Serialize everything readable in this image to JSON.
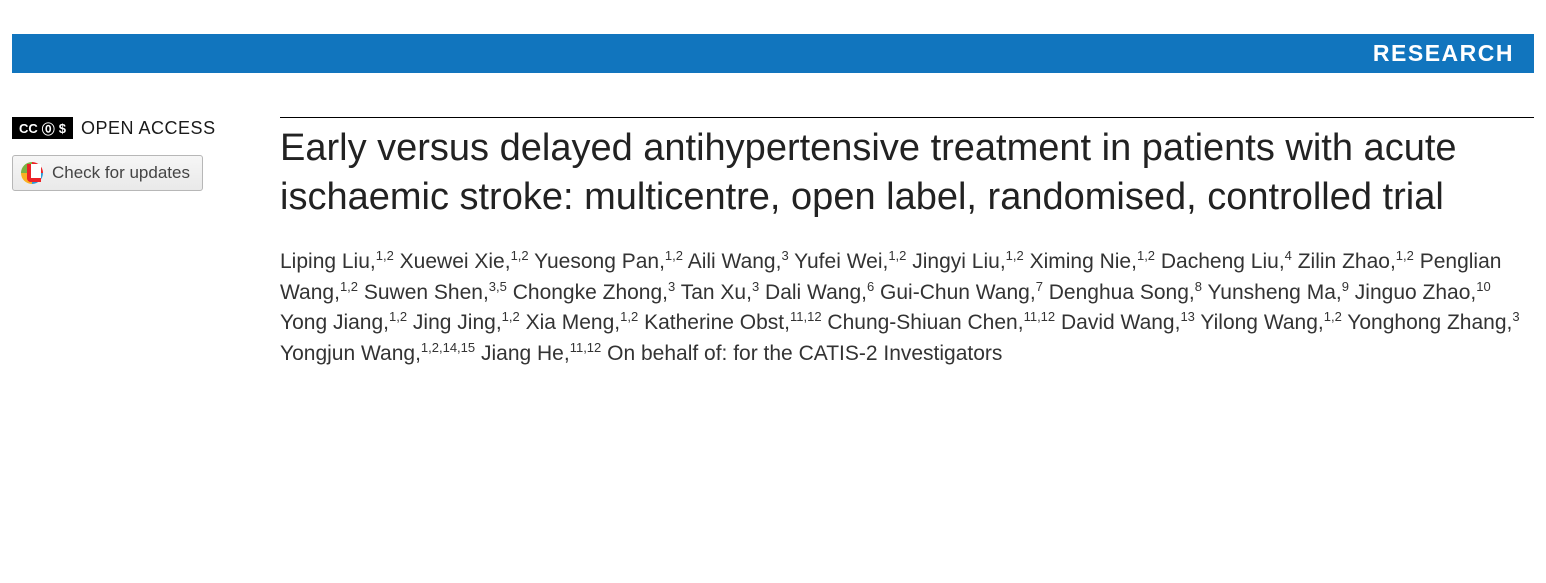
{
  "header": {
    "section_label": "RESEARCH",
    "bar_color": "#1175be"
  },
  "sidebar": {
    "open_access_label": "OPEN ACCESS",
    "cc_symbols": "ⓒ ⓪ ⑤",
    "updates_button_label": "Check for updates"
  },
  "article": {
    "title": "Early versus delayed antihypertensive treatment in patients with acute ischaemic stroke: multicentre, open label, randomised, controlled trial",
    "authors": [
      {
        "name": "Liping Liu",
        "aff": "1,2"
      },
      {
        "name": "Xuewei Xie",
        "aff": "1,2"
      },
      {
        "name": "Yuesong Pan",
        "aff": "1,2"
      },
      {
        "name": "Aili Wang",
        "aff": "3"
      },
      {
        "name": "Yufei Wei",
        "aff": "1,2"
      },
      {
        "name": "Jingyi Liu",
        "aff": "1,2"
      },
      {
        "name": "Ximing Nie",
        "aff": "1,2"
      },
      {
        "name": "Dacheng Liu",
        "aff": "4"
      },
      {
        "name": "Zilin Zhao",
        "aff": "1,2"
      },
      {
        "name": "Penglian Wang",
        "aff": "1,2"
      },
      {
        "name": "Suwen Shen",
        "aff": "3,5"
      },
      {
        "name": "Chongke Zhong",
        "aff": "3"
      },
      {
        "name": "Tan Xu",
        "aff": "3"
      },
      {
        "name": "Dali Wang",
        "aff": "6"
      },
      {
        "name": "Gui-Chun Wang",
        "aff": "7"
      },
      {
        "name": "Denghua Song",
        "aff": "8"
      },
      {
        "name": "Yunsheng Ma",
        "aff": "9"
      },
      {
        "name": "Jinguo Zhao",
        "aff": "10"
      },
      {
        "name": "Yong Jiang",
        "aff": "1,2"
      },
      {
        "name": "Jing Jing",
        "aff": "1,2"
      },
      {
        "name": "Xia Meng",
        "aff": "1,2"
      },
      {
        "name": "Katherine Obst",
        "aff": "11,12"
      },
      {
        "name": "Chung-Shiuan Chen",
        "aff": "11,12"
      },
      {
        "name": "David Wang",
        "aff": "13"
      },
      {
        "name": "Yilong Wang",
        "aff": "1,2"
      },
      {
        "name": "Yonghong Zhang",
        "aff": "3"
      },
      {
        "name": "Yongjun Wang",
        "aff": "1,2,14,15"
      },
      {
        "name": "Jiang He",
        "aff": "11,12"
      }
    ],
    "group_suffix": "On behalf of: for the CATIS-2 Investigators"
  }
}
